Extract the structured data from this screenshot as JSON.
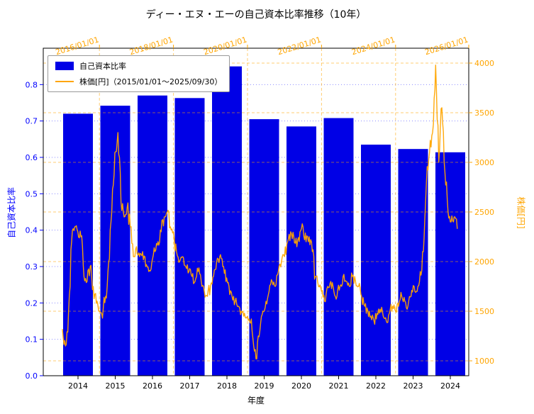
{
  "chart_data": {
    "type": "combo",
    "title": "ディー・エヌ・エーの自己資本比率推移（10年）",
    "xlabel": "年度",
    "grid": true,
    "legend_position": "upper-left",
    "left_axis": {
      "label": "自己資本比率",
      "color": "#0000ff",
      "lim": [
        0.0,
        0.9
      ],
      "ticks": [
        0.0,
        0.1,
        0.2,
        0.3,
        0.4,
        0.5,
        0.6,
        0.7,
        0.8
      ]
    },
    "right_axis": {
      "label": "株価[円]",
      "color": "#ffa500",
      "lim": [
        850,
        4150
      ],
      "ticks": [
        1000,
        1500,
        2000,
        2500,
        3000,
        3500,
        4000
      ]
    },
    "top_axis": {
      "color": "#ffa500",
      "tick_years": [
        2016,
        2018,
        2020,
        2022,
        2024,
        2026
      ],
      "tick_labels": [
        "2016/01/01",
        "2018/01/01",
        "2020/01/01",
        "2022/01/01",
        "2024/01/01",
        "2026/01/01"
      ]
    },
    "bars": {
      "name": "自己資本比率",
      "color": "#0000e6",
      "categories": [
        2014,
        2015,
        2016,
        2017,
        2018,
        2019,
        2020,
        2021,
        2022,
        2023,
        2024
      ],
      "values": [
        0.72,
        0.742,
        0.77,
        0.763,
        0.85,
        0.705,
        0.685,
        0.708,
        0.635,
        0.623,
        0.614
      ]
    },
    "stock": {
      "name": "株価[円]",
      "color": "#ffa500",
      "x_start": "2015/01",
      "x_end": "2025/09",
      "x_interval": "monthly",
      "values": [
        1320,
        1150,
        1500,
        2200,
        2350,
        2300,
        2250,
        1850,
        1800,
        1950,
        1750,
        1580,
        1500,
        1430,
        1650,
        2000,
        2500,
        3100,
        3300,
        2600,
        2450,
        2550,
        2350,
        2050,
        2150,
        2050,
        2100,
        1950,
        1900,
        2000,
        2100,
        2200,
        2300,
        2450,
        2500,
        2350,
        2300,
        2100,
        2000,
        2050,
        1950,
        1900,
        1850,
        1800,
        1900,
        1800,
        1700,
        1650,
        1750,
        1850,
        2000,
        2050,
        1950,
        1800,
        1750,
        1650,
        1600,
        1550,
        1500,
        1480,
        1450,
        1380,
        1150,
        1020,
        1300,
        1500,
        1600,
        1700,
        1800,
        1750,
        1900,
        2000,
        2050,
        2200,
        2300,
        2250,
        2150,
        2300,
        2350,
        2200,
        2250,
        2100,
        1850,
        1750,
        1700,
        1600,
        1750,
        1800,
        1700,
        1650,
        1750,
        1850,
        1800,
        1750,
        1850,
        1800,
        1750,
        1650,
        1550,
        1500,
        1450,
        1400,
        1480,
        1520,
        1450,
        1400,
        1480,
        1550,
        1500,
        1550,
        1650,
        1600,
        1550,
        1650,
        1750,
        1700,
        1900,
        2100,
        2800,
        3100,
        3300,
        3980,
        3000,
        3550,
        2900,
        2500,
        2400,
        2450,
        2330
      ]
    },
    "legend": {
      "entries": [
        {
          "label": "自己資本比率"
        },
        {
          "label": "株価[円]（2015/01/01～2025/09/30）"
        }
      ]
    }
  }
}
